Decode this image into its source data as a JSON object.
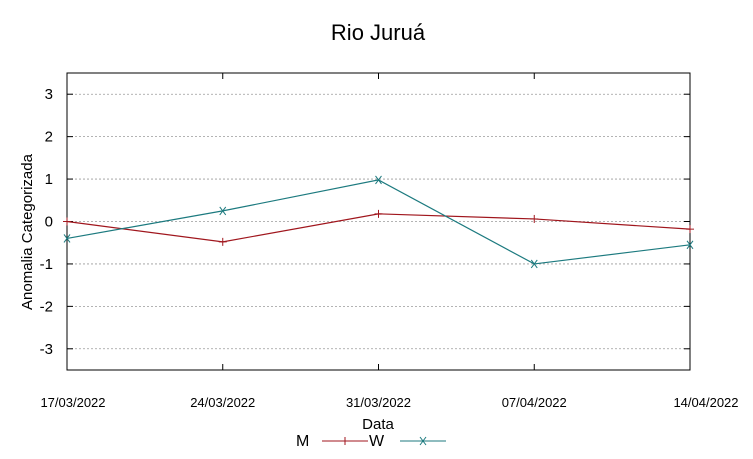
{
  "chart_data": {
    "type": "line",
    "title": "Rio Juruá",
    "xlabel": "Data",
    "ylabel": "Anomalia Categorizada",
    "categories": [
      "17/03/2022",
      "24/03/2022",
      "31/03/2022",
      "07/04/2022",
      "14/04/2022"
    ],
    "yticks": [
      "3",
      "2",
      "1",
      "0",
      "-1",
      "-2",
      "-3"
    ],
    "ylim": [
      -3.5,
      3.5
    ],
    "grid": true,
    "legend_placement": "bottom-center",
    "series": [
      {
        "name": "M",
        "values": [
          0.0,
          -0.48,
          0.18,
          0.06,
          -0.18
        ],
        "color": "#a0161d",
        "marker": "plus"
      },
      {
        "name": "W",
        "values": [
          -0.4,
          0.25,
          0.98,
          -1.0,
          -0.55
        ],
        "color": "#1c7a7f",
        "marker": "cross"
      }
    ]
  }
}
